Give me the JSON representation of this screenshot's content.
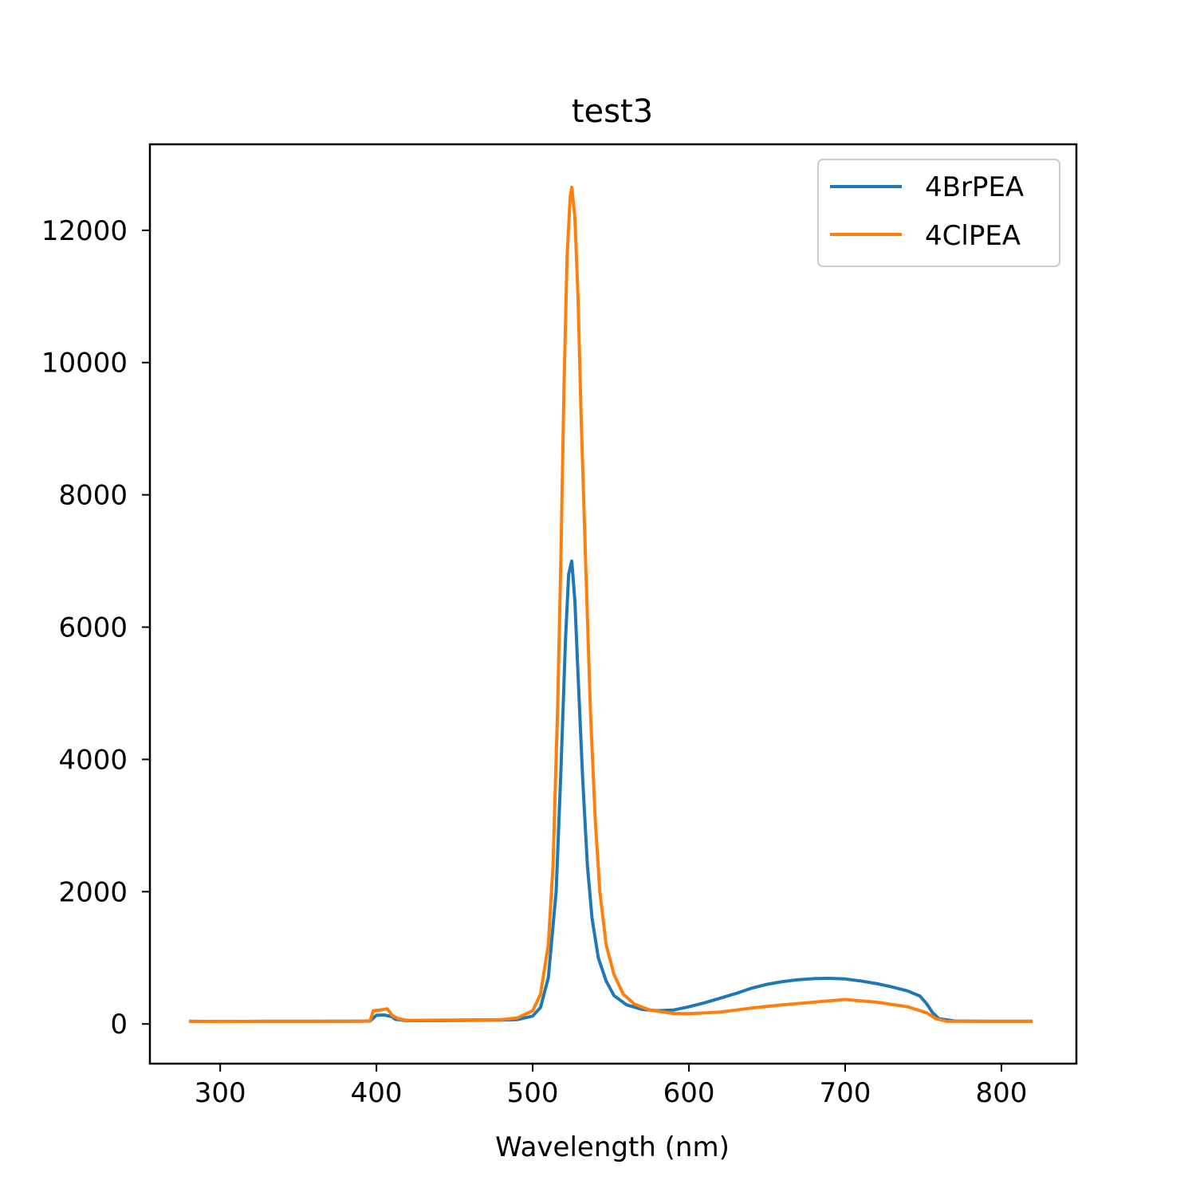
{
  "chart_data": {
    "type": "line",
    "title": "test3",
    "xlabel": "Wavelength (nm)",
    "ylabel": "",
    "xlim": [
      255,
      848
    ],
    "ylim": [
      -600,
      13300
    ],
    "xticks": [
      300,
      400,
      500,
      600,
      700,
      800
    ],
    "yticks": [
      0,
      2000,
      4000,
      6000,
      8000,
      10000,
      12000
    ],
    "grid": false,
    "legend_position": "top-right",
    "series": [
      {
        "name": "4BrPEA",
        "color": "#1f77b4",
        "points": [
          [
            280,
            40
          ],
          [
            300,
            38
          ],
          [
            330,
            40
          ],
          [
            360,
            40
          ],
          [
            390,
            42
          ],
          [
            396,
            45
          ],
          [
            400,
            130
          ],
          [
            405,
            135
          ],
          [
            410,
            110
          ],
          [
            412,
            70
          ],
          [
            420,
            50
          ],
          [
            450,
            55
          ],
          [
            480,
            60
          ],
          [
            490,
            65
          ],
          [
            500,
            120
          ],
          [
            505,
            250
          ],
          [
            510,
            700
          ],
          [
            515,
            2000
          ],
          [
            518,
            3800
          ],
          [
            521,
            5800
          ],
          [
            523,
            6800
          ],
          [
            525,
            7000
          ],
          [
            527,
            6400
          ],
          [
            529,
            5300
          ],
          [
            532,
            3700
          ],
          [
            535,
            2400
          ],
          [
            538,
            1600
          ],
          [
            542,
            1000
          ],
          [
            547,
            650
          ],
          [
            552,
            430
          ],
          [
            560,
            290
          ],
          [
            570,
            220
          ],
          [
            580,
            200
          ],
          [
            590,
            210
          ],
          [
            600,
            260
          ],
          [
            610,
            320
          ],
          [
            620,
            390
          ],
          [
            630,
            460
          ],
          [
            640,
            540
          ],
          [
            650,
            600
          ],
          [
            660,
            640
          ],
          [
            670,
            670
          ],
          [
            680,
            685
          ],
          [
            690,
            690
          ],
          [
            700,
            680
          ],
          [
            710,
            650
          ],
          [
            720,
            610
          ],
          [
            730,
            560
          ],
          [
            740,
            500
          ],
          [
            748,
            420
          ],
          [
            752,
            310
          ],
          [
            756,
            170
          ],
          [
            760,
            80
          ],
          [
            770,
            45
          ],
          [
            790,
            40
          ],
          [
            820,
            40
          ]
        ]
      },
      {
        "name": "4ClPEA",
        "color": "#ff7f0e",
        "points": [
          [
            280,
            40
          ],
          [
            300,
            38
          ],
          [
            330,
            40
          ],
          [
            360,
            40
          ],
          [
            390,
            42
          ],
          [
            396,
            50
          ],
          [
            398,
            200
          ],
          [
            402,
            210
          ],
          [
            407,
            230
          ],
          [
            410,
            130
          ],
          [
            414,
            80
          ],
          [
            420,
            55
          ],
          [
            450,
            60
          ],
          [
            480,
            65
          ],
          [
            490,
            90
          ],
          [
            500,
            200
          ],
          [
            505,
            450
          ],
          [
            510,
            1200
          ],
          [
            513,
            2400
          ],
          [
            516,
            4800
          ],
          [
            518,
            7000
          ],
          [
            520,
            9600
          ],
          [
            522,
            11600
          ],
          [
            524,
            12500
          ],
          [
            525,
            12650
          ],
          [
            527,
            12200
          ],
          [
            529,
            11000
          ],
          [
            531,
            9200
          ],
          [
            534,
            6900
          ],
          [
            537,
            4700
          ],
          [
            540,
            3100
          ],
          [
            543,
            2000
          ],
          [
            547,
            1200
          ],
          [
            552,
            750
          ],
          [
            558,
            450
          ],
          [
            565,
            300
          ],
          [
            575,
            210
          ],
          [
            590,
            160
          ],
          [
            600,
            155
          ],
          [
            620,
            180
          ],
          [
            640,
            240
          ],
          [
            660,
            290
          ],
          [
            680,
            330
          ],
          [
            695,
            360
          ],
          [
            700,
            370
          ],
          [
            710,
            350
          ],
          [
            720,
            330
          ],
          [
            740,
            260
          ],
          [
            752,
            170
          ],
          [
            758,
            80
          ],
          [
            765,
            40
          ],
          [
            790,
            40
          ],
          [
            820,
            40
          ]
        ]
      }
    ]
  }
}
